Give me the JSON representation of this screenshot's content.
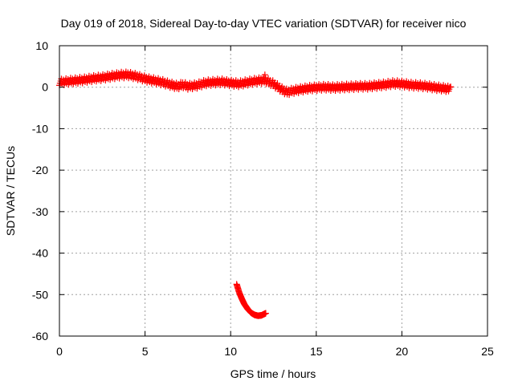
{
  "chart_data": {
    "type": "scatter",
    "title": "Day 019 of 2018, Sidereal Day-to-day VTEC variation (SDTVAR) for receiver nico",
    "xlabel": "GPS time / hours",
    "ylabel": "SDTVAR / TECUs",
    "xlim": [
      0,
      25
    ],
    "ylim": [
      -60,
      10
    ],
    "xticks": [
      0,
      5,
      10,
      15,
      20,
      25
    ],
    "yticks": [
      10,
      0,
      -10,
      -20,
      -30,
      -40,
      -50,
      -60
    ],
    "grid": true,
    "marker": "+",
    "series_color": "#ff0000",
    "series": [
      {
        "name": "main-track",
        "points": [
          [
            0.0,
            1.2
          ],
          [
            0.5,
            1.4
          ],
          [
            1.0,
            1.6
          ],
          [
            1.5,
            1.8
          ],
          [
            2.0,
            2.1
          ],
          [
            2.5,
            2.3
          ],
          [
            3.0,
            2.6
          ],
          [
            3.5,
            2.9
          ],
          [
            4.0,
            3.0
          ],
          [
            4.5,
            2.6
          ],
          [
            5.0,
            2.0
          ],
          [
            5.5,
            1.6
          ],
          [
            6.0,
            1.2
          ],
          [
            6.5,
            0.6
          ],
          [
            6.9,
            0.2
          ],
          [
            7.2,
            0.6
          ],
          [
            7.5,
            0.2
          ],
          [
            8.0,
            0.4
          ],
          [
            8.5,
            1.0
          ],
          [
            9.0,
            1.2
          ],
          [
            9.5,
            1.3
          ],
          [
            10.0,
            1.0
          ],
          [
            10.5,
            0.8
          ],
          [
            11.0,
            1.2
          ],
          [
            11.5,
            1.5
          ],
          [
            12.0,
            1.7
          ],
          [
            12.5,
            0.8
          ],
          [
            13.0,
            -0.6
          ],
          [
            13.3,
            -1.2
          ],
          [
            13.7,
            -0.8
          ],
          [
            14.0,
            -0.6
          ],
          [
            14.5,
            -0.3
          ],
          [
            15.0,
            -0.1
          ],
          [
            15.5,
            0.0
          ],
          [
            16.0,
            -0.1
          ],
          [
            16.5,
            0.0
          ],
          [
            17.0,
            0.1
          ],
          [
            17.5,
            0.2
          ],
          [
            18.0,
            0.2
          ],
          [
            18.5,
            0.4
          ],
          [
            19.0,
            0.6
          ],
          [
            19.5,
            0.9
          ],
          [
            20.0,
            0.8
          ],
          [
            20.5,
            0.5
          ],
          [
            21.0,
            0.4
          ],
          [
            21.5,
            0.2
          ],
          [
            22.0,
            -0.1
          ],
          [
            22.5,
            -0.3
          ],
          [
            22.8,
            -0.5
          ]
        ]
      },
      {
        "name": "arc",
        "points": [
          [
            10.35,
            -47.5
          ],
          [
            10.5,
            -49.5
          ],
          [
            10.65,
            -51.0
          ],
          [
            10.8,
            -52.3
          ],
          [
            11.0,
            -53.5
          ],
          [
            11.2,
            -54.4
          ],
          [
            11.4,
            -54.9
          ],
          [
            11.6,
            -55.1
          ],
          [
            11.8,
            -55.0
          ],
          [
            11.95,
            -54.7
          ],
          [
            12.05,
            -54.5
          ]
        ]
      },
      {
        "name": "outliers",
        "points": [
          [
            12.0,
            3.0
          ],
          [
            22.85,
            0.1
          ]
        ]
      }
    ]
  }
}
